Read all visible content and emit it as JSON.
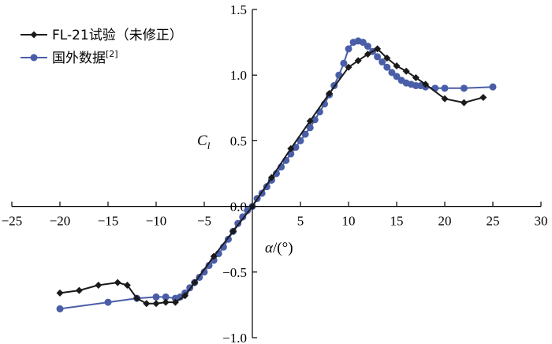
{
  "chart_data": {
    "type": "line",
    "xlabel_symbol": "α",
    "xlabel_unit": "/(°)",
    "ylabel_main": "C",
    "ylabel_sub": "l",
    "xlim": [
      -25,
      30
    ],
    "ylim": [
      -1.0,
      1.5
    ],
    "x_ticks": [
      -25,
      -20,
      -15,
      -10,
      -5,
      0,
      5,
      10,
      15,
      20,
      25,
      30
    ],
    "x_tick_labels": [
      "−25",
      "−20",
      "−15",
      "−10",
      "−5",
      "0",
      "5",
      "10",
      "15",
      "20",
      "25",
      "30"
    ],
    "y_ticks": [
      -1.0,
      -0.5,
      0.0,
      0.5,
      1.0,
      1.5
    ],
    "y_tick_labels": [
      "−1.0",
      "−0.5",
      "0.0",
      "0.5",
      "1.0",
      "1.5"
    ],
    "legend_position": "top-left",
    "colors": {
      "series1": "#1a1a1a",
      "series2": "#4a5ea8"
    },
    "series": [
      {
        "name": "FL-21试验（未修正）",
        "marker": "diamond",
        "x": [
          -20,
          -18,
          -16,
          -14,
          -13,
          -12,
          -11,
          -10,
          -9,
          -8,
          -7,
          -6,
          -4,
          -2,
          0,
          2,
          4,
          6,
          8,
          10,
          11,
          12,
          13,
          14,
          15,
          16,
          17,
          18,
          20,
          22,
          24
        ],
        "y": [
          -0.66,
          -0.64,
          -0.6,
          -0.58,
          -0.6,
          -0.7,
          -0.74,
          -0.74,
          -0.73,
          -0.73,
          -0.68,
          -0.58,
          -0.38,
          -0.19,
          0.0,
          0.22,
          0.44,
          0.65,
          0.86,
          1.06,
          1.11,
          1.16,
          1.2,
          1.13,
          1.07,
          1.03,
          0.98,
          0.93,
          0.82,
          0.79,
          0.83
        ]
      },
      {
        "name": "国外数据",
        "name_sup": "[2]",
        "marker": "circle",
        "x": [
          -20,
          -15,
          -12,
          -10,
          -9,
          -8,
          -7.5,
          -7,
          -6.5,
          -6,
          -5.5,
          -5,
          -4.5,
          -4,
          -3.5,
          -3,
          -2.5,
          -2,
          -1.5,
          -1,
          -0.5,
          0,
          0.5,
          1,
          1.5,
          2,
          2.5,
          3,
          3.5,
          4,
          4.5,
          5,
          5.5,
          6,
          6.5,
          7,
          7.5,
          8,
          8.5,
          9,
          9.5,
          10,
          10.5,
          11,
          11.5,
          12,
          12.5,
          13,
          13.5,
          14,
          14.5,
          15,
          15.5,
          16,
          16.5,
          17,
          17.5,
          18,
          19,
          20,
          22,
          25
        ],
        "y": [
          -0.78,
          -0.73,
          -0.7,
          -0.69,
          -0.69,
          -0.7,
          -0.69,
          -0.66,
          -0.62,
          -0.58,
          -0.54,
          -0.5,
          -0.45,
          -0.41,
          -0.36,
          -0.31,
          -0.25,
          -0.19,
          -0.13,
          -0.08,
          -0.03,
          0.0,
          0.06,
          0.1,
          0.15,
          0.2,
          0.25,
          0.3,
          0.35,
          0.4,
          0.45,
          0.5,
          0.55,
          0.6,
          0.66,
          0.72,
          0.78,
          0.85,
          0.92,
          1.0,
          1.09,
          1.2,
          1.25,
          1.26,
          1.25,
          1.22,
          1.18,
          1.14,
          1.1,
          1.06,
          1.02,
          0.99,
          0.96,
          0.94,
          0.93,
          0.92,
          0.92,
          0.91,
          0.9,
          0.9,
          0.9,
          0.91
        ]
      }
    ]
  }
}
